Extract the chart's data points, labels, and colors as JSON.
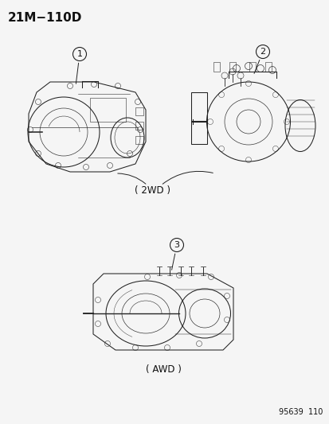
{
  "title": "21M−110D",
  "background_color": "#f5f5f5",
  "text_color": "#1a1a1a",
  "diagram_number": "95639  110",
  "label1": "1",
  "label2": "2",
  "label3": "3",
  "label_2wd": "( 2WD )",
  "label_awd": "( AWD )",
  "figsize": [
    4.14,
    5.33
  ],
  "dpi": 100,
  "bg_hex": "#f7f7f7"
}
